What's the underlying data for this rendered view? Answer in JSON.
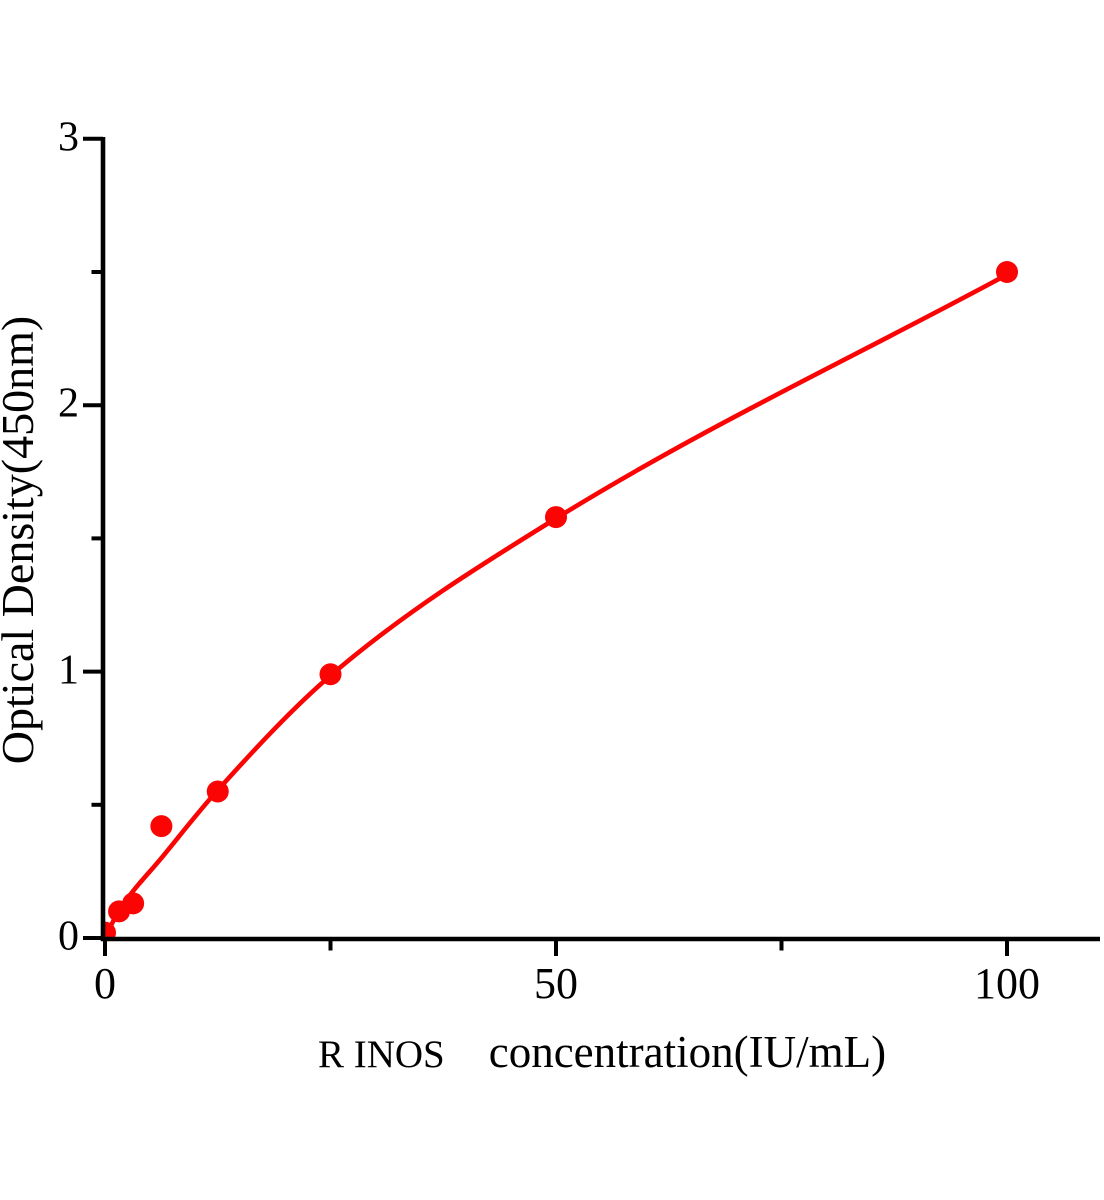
{
  "colors": {
    "series_red": "#fa0404",
    "axis_black": "#000000",
    "background": "#ffffff"
  },
  "chart_data": {
    "type": "scatter",
    "title": "",
    "ylabel": "Optical Density(450nm)",
    "xlabel_prefix": "R INOS",
    "xlabel_main": "concentration(IU/mL)",
    "x": [
      0,
      1.56,
      3.12,
      6.25,
      12.5,
      25,
      50,
      100
    ],
    "values": [
      0.02,
      0.1,
      0.13,
      0.42,
      0.55,
      0.99,
      1.58,
      2.5
    ],
    "xlim": [
      0,
      110.5
    ],
    "ylim": [
      0,
      3
    ],
    "x_ticks_major": [
      0,
      50,
      100
    ],
    "x_ticks_minor": [
      25,
      75
    ],
    "y_ticks_major": [
      0,
      1,
      2,
      3
    ],
    "y_ticks_minor": [
      0.5,
      1.5,
      2.5
    ],
    "grid": false,
    "legend": false,
    "marker": "circle",
    "fit_curve_anchors": [
      [
        0,
        0.005
      ],
      [
        1.8,
        0.115
      ],
      [
        6.25,
        0.3
      ],
      [
        12.5,
        0.555
      ],
      [
        25,
        0.985
      ],
      [
        50,
        1.575
      ],
      [
        100,
        2.49
      ]
    ]
  }
}
